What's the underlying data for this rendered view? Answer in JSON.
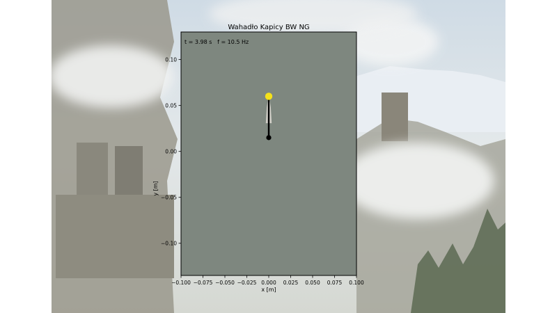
{
  "chart_data": {
    "type": "line",
    "title": "Wahadło Kapicy BW NG",
    "annotation": "t = 3.98 s   f = 10.5 Hz",
    "xlabel": "x [m]",
    "ylabel": "y [m]",
    "xlim": [
      -0.1,
      0.1
    ],
    "ylim": [
      -0.135,
      0.13
    ],
    "x_ticks": [
      -0.1,
      -0.075,
      -0.05,
      -0.025,
      0.0,
      0.025,
      0.05,
      0.075,
      0.1
    ],
    "x_tick_labels": [
      "−0.100",
      "−0.075",
      "−0.050",
      "−0.025",
      "0.000",
      "0.025",
      "0.050",
      "0.075",
      "0.100"
    ],
    "y_ticks": [
      0.1,
      0.05,
      0.0,
      -0.05,
      -0.1
    ],
    "y_tick_labels": [
      "0.10",
      "0.05",
      "0.00",
      "−0.05",
      "−0.10"
    ],
    "grid": false,
    "plot_background": "#7e877f",
    "series": [
      {
        "role": "motion-trace",
        "color": "#d9d6cf",
        "x": [
          -0.003,
          -0.002,
          0.0,
          0.002,
          0.003
        ],
        "y": [
          0.031,
          0.048,
          0.06,
          0.048,
          0.031
        ]
      },
      {
        "role": "rod",
        "color": "#000000",
        "x": [
          0.0,
          0.0
        ],
        "y": [
          0.015,
          0.06
        ]
      }
    ],
    "points": [
      {
        "role": "bob",
        "x": 0.0,
        "y": 0.06,
        "color": "#f5e11a"
      },
      {
        "role": "pivot",
        "x": 0.0,
        "y": 0.015,
        "color": "#000000"
      }
    ]
  },
  "scene": {
    "background_palette": {
      "sky": "#d8e2ea",
      "cloud": "#eef1f2",
      "rock": "#8c8a7e",
      "forest": "#56624d"
    }
  }
}
